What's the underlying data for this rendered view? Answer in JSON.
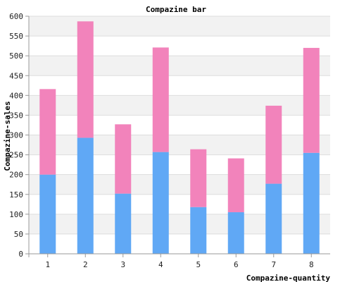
{
  "chart_data": {
    "type": "bar",
    "stacked": true,
    "title": "Compazine bar",
    "xlabel": "Compazine-quantity",
    "ylabel": "Compazine-sales",
    "categories": [
      "1",
      "2",
      "3",
      "4",
      "5",
      "6",
      "7",
      "8"
    ],
    "series": [
      {
        "values": [
          200,
          293,
          152,
          257,
          118,
          105,
          177,
          255
        ],
        "color": "#60a8f5"
      },
      {
        "values": [
          216,
          294,
          175,
          264,
          146,
          136,
          197,
          265
        ],
        "color": "#f283bb"
      }
    ],
    "ylim": [
      0,
      600
    ],
    "yticks": [
      0,
      50,
      100,
      150,
      200,
      250,
      300,
      350,
      400,
      450,
      500,
      550,
      600
    ],
    "grid": true,
    "band_colors": [
      "#ffffff",
      "#f2f2f2"
    ]
  }
}
